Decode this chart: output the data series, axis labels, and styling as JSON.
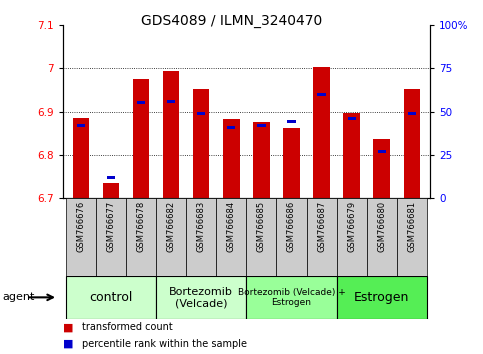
{
  "title": "GDS4089 / ILMN_3240470",
  "samples": [
    "GSM766676",
    "GSM766677",
    "GSM766678",
    "GSM766682",
    "GSM766683",
    "GSM766684",
    "GSM766685",
    "GSM766686",
    "GSM766687",
    "GSM766679",
    "GSM766680",
    "GSM766681"
  ],
  "red_values": [
    6.885,
    6.735,
    6.975,
    6.993,
    6.952,
    6.882,
    6.875,
    6.862,
    7.003,
    6.897,
    6.837,
    6.952
  ],
  "blue_values": [
    0.42,
    0.12,
    0.55,
    0.56,
    0.49,
    0.41,
    0.42,
    0.44,
    0.6,
    0.46,
    0.27,
    0.49
  ],
  "ymin": 6.7,
  "ymax": 7.1,
  "yticks_left": [
    6.7,
    6.8,
    6.9,
    7.0,
    7.1
  ],
  "ytick_labels_left": [
    "6.7",
    "6.8",
    "6.9",
    "7",
    "7.1"
  ],
  "yticks_right": [
    0,
    25,
    50,
    75,
    100
  ],
  "ytick_labels_right": [
    "0",
    "25",
    "50",
    "75",
    "100%"
  ],
  "group_defs": [
    {
      "start": 0,
      "end": 2,
      "label": "control",
      "color": "#ccffcc",
      "fontsize": 9
    },
    {
      "start": 3,
      "end": 5,
      "label": "Bortezomib\n(Velcade)",
      "color": "#ccffcc",
      "fontsize": 8
    },
    {
      "start": 6,
      "end": 8,
      "label": "Bortezomib (Velcade) +\nEstrogen",
      "color": "#99ff99",
      "fontsize": 6.5
    },
    {
      "start": 9,
      "end": 11,
      "label": "Estrogen",
      "color": "#55ee55",
      "fontsize": 9
    }
  ],
  "legend_red": "transformed count",
  "legend_blue": "percentile rank within the sample",
  "bar_width": 0.55,
  "bar_color_red": "#cc0000",
  "bar_color_blue": "#0000cc",
  "bg_color": "#ffffff"
}
